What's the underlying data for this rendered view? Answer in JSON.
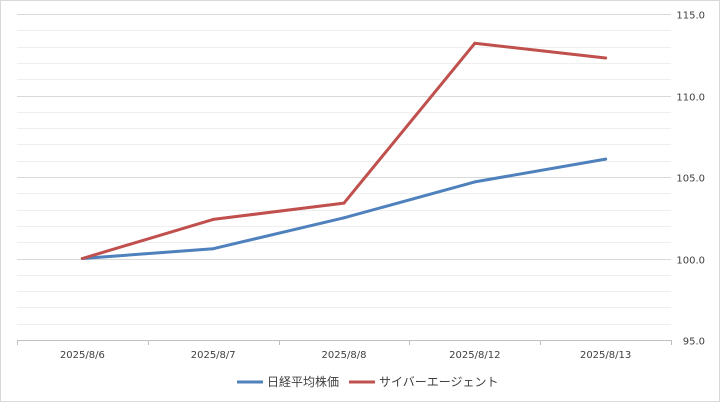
{
  "chart_data": {
    "type": "line",
    "categories": [
      "2025/8/6",
      "2025/8/7",
      "2025/8/8",
      "2025/8/12",
      "2025/8/13"
    ],
    "series": [
      {
        "name": "日経平均株価",
        "values": [
          100.0,
          100.6,
          102.5,
          104.7,
          106.1
        ],
        "color": "#4f81bd"
      },
      {
        "name": "サイバーエージェント",
        "values": [
          100.0,
          102.4,
          103.4,
          113.2,
          112.3
        ],
        "color": "#c0504d"
      }
    ],
    "ylim": [
      95.0,
      115.0
    ],
    "y_ticks": [
      "95.0",
      "100.0",
      "105.0",
      "110.0",
      "115.0"
    ],
    "y_axis_side": "right",
    "grid": true,
    "legend_position": "bottom",
    "title": "",
    "xlabel": "",
    "ylabel": ""
  }
}
